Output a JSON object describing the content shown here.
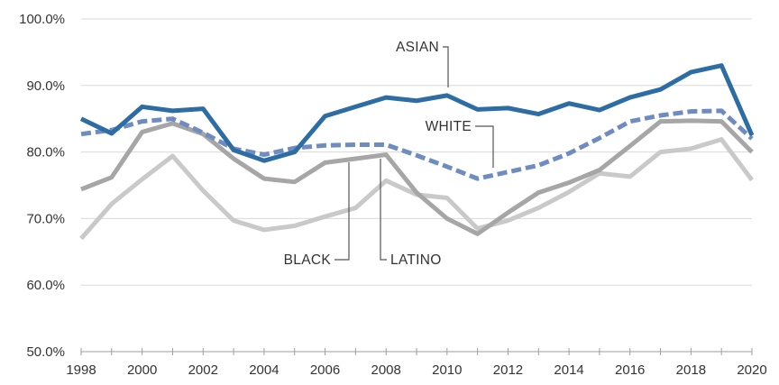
{
  "chart_data": {
    "type": "line",
    "title": "",
    "xlabel": "",
    "ylabel": "",
    "ylim": [
      50,
      100
    ],
    "xlim": [
      1998,
      2020
    ],
    "grid": "horizontal",
    "legend": "direct labels on lines",
    "x": [
      1998,
      1999,
      2000,
      2001,
      2002,
      2003,
      2004,
      2005,
      2006,
      2007,
      2008,
      2009,
      2010,
      2011,
      2012,
      2013,
      2014,
      2015,
      2016,
      2017,
      2018,
      2019,
      2020
    ],
    "x_tick_labels": [
      "1998",
      "2000",
      "2002",
      "2004",
      "2006",
      "2008",
      "2010",
      "2012",
      "2014",
      "2016",
      "2018",
      "2020"
    ],
    "y_tick_labels": [
      "50.0%",
      "60.0%",
      "70.0%",
      "80.0%",
      "90.0%",
      "100.0%"
    ],
    "series": [
      {
        "name": "LATINO",
        "color": "#c9c9c9",
        "dash": false,
        "values": [
          67.0,
          72.2,
          75.9,
          79.4,
          74.2,
          69.7,
          68.3,
          68.9,
          70.3,
          71.6,
          75.7,
          73.6,
          73.1,
          68.5,
          69.7,
          71.6,
          74.0,
          76.8,
          76.3,
          80.0,
          80.5,
          81.9,
          75.8
        ]
      },
      {
        "name": "BLACK",
        "color": "#a6a6a6",
        "dash": false,
        "values": [
          74.4,
          76.2,
          83.0,
          84.3,
          82.7,
          79.0,
          76.0,
          75.5,
          78.4,
          79.0,
          79.6,
          73.9,
          70.0,
          67.7,
          70.9,
          73.9,
          75.4,
          77.3,
          80.9,
          84.6,
          84.7,
          84.6,
          80.0
        ]
      },
      {
        "name": "WHITE",
        "color": "#6f8cc0",
        "dash": true,
        "values": [
          82.7,
          83.3,
          84.6,
          85.0,
          82.9,
          80.5,
          79.6,
          80.6,
          81.0,
          81.1,
          81.1,
          79.5,
          77.8,
          76.0,
          77.0,
          78.0,
          79.8,
          82.1,
          84.6,
          85.5,
          86.1,
          86.2,
          82.0
        ]
      },
      {
        "name": "ASIAN",
        "color": "#2e6da4",
        "dash": false,
        "values": [
          85.0,
          82.8,
          86.8,
          86.2,
          86.5,
          80.3,
          78.7,
          80.0,
          85.4,
          86.8,
          88.2,
          87.7,
          88.5,
          86.4,
          86.6,
          85.7,
          87.3,
          86.3,
          88.2,
          89.4,
          92.0,
          93.0,
          82.5
        ]
      }
    ],
    "labels": {
      "asian": "ASIAN",
      "white": "WHITE",
      "black": "BLACK",
      "latino": "LATINO"
    }
  }
}
